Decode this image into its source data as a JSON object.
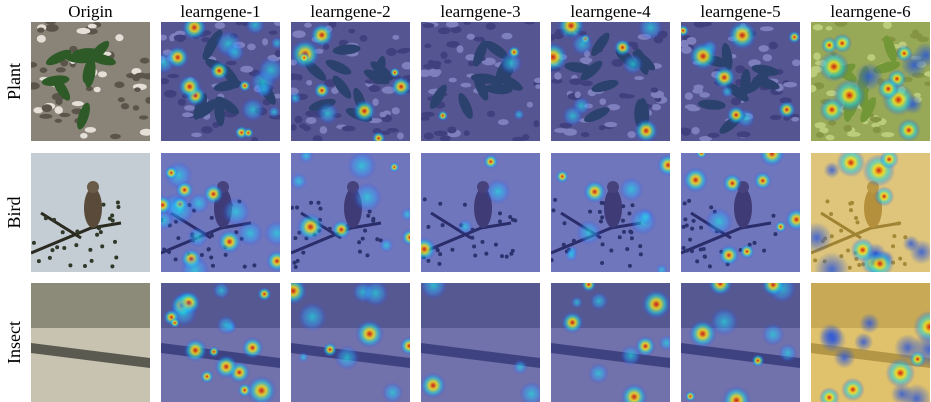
{
  "columns": [
    "Origin",
    "learngene-1",
    "learngene-2",
    "learngene-3",
    "learngene-4",
    "learngene-5",
    "learngene-6"
  ],
  "rows": [
    "Plant",
    "Bird",
    "Insect"
  ]
}
